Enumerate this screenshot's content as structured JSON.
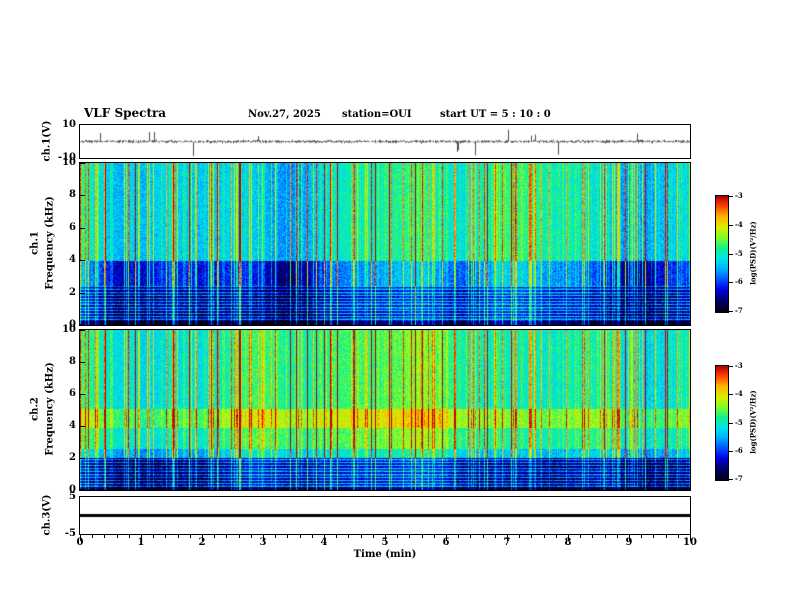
{
  "header": {
    "title": "VLF Spectra",
    "date": "Nov.27, 2025",
    "station": "station=OUI",
    "start_ut": "start UT =  5 : 10 : 0"
  },
  "time_axis": {
    "label": "Time (min)",
    "ticks": [
      0,
      1,
      2,
      3,
      4,
      5,
      6,
      7,
      8,
      9,
      10
    ],
    "range": [
      0,
      10
    ],
    "minor_per_major": 5
  },
  "panels": {
    "ch1_wave": {
      "ylabel": "ch.1(V)",
      "yticks": [
        10,
        -10
      ],
      "ylim": [
        -10,
        10
      ]
    },
    "ch1_spec": {
      "ylabel_channel": "ch.1",
      "ylabel_freq": "Frequency (kHz)",
      "yticks": [
        0,
        2,
        4,
        6,
        8,
        10
      ],
      "ylim": [
        0,
        10
      ]
    },
    "ch2_spec": {
      "ylabel_channel": "ch.2",
      "ylabel_freq": "Frequency (kHz)",
      "yticks": [
        0,
        2,
        4,
        6,
        8,
        10
      ],
      "ylim": [
        0,
        10
      ]
    },
    "ch3_wave": {
      "ylabel": "ch.3(V)",
      "yticks": [
        5,
        -5
      ],
      "ylim": [
        -5,
        5
      ]
    }
  },
  "colorbar": {
    "label": "log(PSD)(V²/Hz)",
    "ticks": [
      -3,
      -4,
      -5,
      -6,
      -7
    ],
    "range": [
      -3,
      -7
    ]
  },
  "colormap": {
    "stops": [
      [
        -7.0,
        "#000018"
      ],
      [
        -6.6,
        "#00006e"
      ],
      [
        -6.25,
        "#0000e0"
      ],
      [
        -5.9,
        "#0050ff"
      ],
      [
        -5.5,
        "#00b4ff"
      ],
      [
        -5.15,
        "#00e6e6"
      ],
      [
        -4.8,
        "#14f08c"
      ],
      [
        -4.45,
        "#78ff28"
      ],
      [
        -4.1,
        "#d8f000"
      ],
      [
        -3.7,
        "#ffb400"
      ],
      [
        -3.35,
        "#ff4600"
      ],
      [
        -3.0,
        "#b40000"
      ]
    ]
  },
  "chart_data": [
    {
      "type": "line",
      "name": "ch1-voltage-waveform",
      "ylabel": "ch.1(V)",
      "ylim": [
        -10,
        10
      ],
      "x_range": [
        0,
        10
      ],
      "signal": {
        "baseline": 0,
        "noise_amp": 0.7,
        "spike_prob": 0.02,
        "spike_amp": [
          3,
          9
        ],
        "seed": 7
      },
      "note": "dense noise band near 0 V with intermittent impulsive spikes toward full scale"
    },
    {
      "type": "heatmap",
      "name": "ch1-spectrogram",
      "xlabel": "Time (min)",
      "ylabel": "Frequency (kHz)",
      "x_range": [
        0,
        10
      ],
      "y_range": [
        0,
        10
      ],
      "z_label": "log(PSD)(V²/Hz)",
      "z_range": [
        -7,
        -3
      ],
      "bands": [
        {
          "f": [
            0,
            0.25
          ],
          "level": -6.9
        },
        {
          "f": [
            0.25,
            2.45
          ],
          "level": -6.35,
          "stripes": true,
          "note": "dark-blue band with horizontal harmonic lines"
        },
        {
          "f": [
            2.45,
            4.0
          ],
          "level": -5.9,
          "slowmul": 1.5,
          "note": "blue band, intensity varies slowly with time"
        },
        {
          "f": [
            4.0,
            10.01
          ],
          "level": -5.15,
          "note": "cyan background"
        }
      ],
      "streaks": {
        "seed": 202,
        "p_strong": 0.045,
        "p_med": 0.2,
        "p_weak": 0.5,
        "strong": [
          1.9,
          2.7
        ],
        "med": [
          0.8,
          1.7
        ],
        "weak": [
          0,
          0.5
        ],
        "full_above_khz": 2.45,
        "low_weight": 0.6,
        "note": "full-height sferic streaks, green/yellow with sparse red"
      },
      "noise": {
        "seed": 11,
        "amp": 0.3
      },
      "slowvar": {
        "seed": 21,
        "amp": 0.3
      }
    },
    {
      "type": "heatmap",
      "name": "ch2-spectrogram",
      "xlabel": "Time (min)",
      "ylabel": "Frequency (kHz)",
      "x_range": [
        0,
        10
      ],
      "y_range": [
        0,
        10
      ],
      "z_label": "log(PSD)(V²/Hz)",
      "z_range": [
        -7,
        -3
      ],
      "bands": [
        {
          "f": [
            0,
            0.25
          ],
          "level": -6.9
        },
        {
          "f": [
            0.25,
            2.0
          ],
          "level": -6.4,
          "stripes": true,
          "note": "dark-blue band with horizontal harmonic lines"
        },
        {
          "f": [
            2.0,
            2.6
          ],
          "level": -5.3
        },
        {
          "f": [
            2.6,
            3.9
          ],
          "level": -4.8
        },
        {
          "f": [
            3.9,
            5.1
          ],
          "level": -4.35,
          "slowmul": 1.2,
          "note": "yellow-green enhanced band near 4-5 kHz"
        },
        {
          "f": [
            5.1,
            10.01
          ],
          "level": -4.9,
          "note": "green background"
        }
      ],
      "streaks": {
        "seed": 202,
        "p_strong": 0.045,
        "p_med": 0.2,
        "p_weak": 0.5,
        "strong": [
          1.9,
          2.7
        ],
        "med": [
          0.8,
          1.7
        ],
        "weak": [
          0,
          0.5
        ],
        "full_above_khz": 2.0,
        "low_weight": 0.6
      },
      "noise": {
        "seed": 12,
        "amp": 0.3
      },
      "slowvar": {
        "seed": 22,
        "amp": 0.25
      }
    },
    {
      "type": "line",
      "name": "ch3-voltage-waveform",
      "ylabel": "ch.3(V)",
      "ylim": [
        -5,
        5
      ],
      "x_range": [
        0,
        10
      ],
      "constant_value": 0,
      "thickness_px": 3,
      "note": "flat thick black trace at 0 V"
    }
  ]
}
